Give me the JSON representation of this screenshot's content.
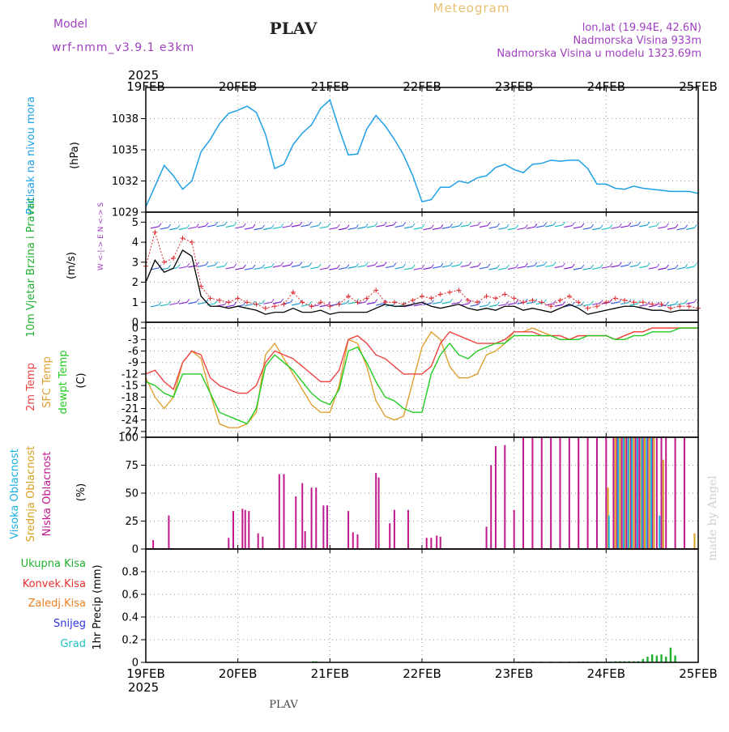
{
  "header": {
    "model_label": "Model",
    "model_name": "wrf-nmm_v3.9.1  e3km",
    "station": "PLAV",
    "product": "Meteogram",
    "lonlat": "lon,lat (19.94E, 42.6N)",
    "elevation": "Nadmorska Visina 933m",
    "model_elevation": "Nadmorska Visina u modelu 1323.69m",
    "footer_station": "PLAV",
    "watermark": "made by Angel"
  },
  "colors": {
    "pressure": "#1ea0e6",
    "wind_speed": "#000000",
    "gust": "#e0282e",
    "temp_2m": "#ee4444",
    "sfc_temp": "#e0a030",
    "dewpoint": "#22cc22",
    "cloud_high": "#1ab0e0",
    "cloud_mid": "#d8a020",
    "cloud_low": "#c0188c",
    "precip_total": "#20b030",
    "precip_conv": "#e83030",
    "precip_frozen": "#f08020",
    "precip_snow": "#3030e0",
    "precip_hail": "#20c0c0",
    "title_purple": "#a040c0",
    "title_gold": "#e8c070",
    "grid": "#9a9a9a"
  },
  "chart_data": [
    {
      "type": "line",
      "panel": "pressure",
      "title": "Pritisak na nivou mora",
      "ylabel": "(hPa)",
      "year": "2025",
      "x_ticks": [
        "19FEB",
        "20FEB",
        "21FEB",
        "22FEB",
        "23FEB",
        "24FEB",
        "25FEB"
      ],
      "x_range_days": [
        0,
        6
      ],
      "ylim": [
        1029,
        1041
      ],
      "y_ticks": [
        "1029",
        "1032",
        "1035",
        "1038"
      ],
      "y_tick_values": [
        1029,
        1032,
        1035,
        1038
      ],
      "x": [
        0,
        0.1,
        0.2,
        0.3,
        0.4,
        0.5,
        0.6,
        0.7,
        0.8,
        0.9,
        1.0,
        1.1,
        1.2,
        1.3,
        1.4,
        1.5,
        1.6,
        1.7,
        1.8,
        1.9,
        2.0,
        2.1,
        2.2,
        2.3,
        2.4,
        2.5,
        2.6,
        2.7,
        2.8,
        2.9,
        3.0,
        3.1,
        3.2,
        3.3,
        3.4,
        3.5,
        3.6,
        3.7,
        3.8,
        3.9,
        4.0,
        4.1,
        4.2,
        4.3,
        4.4,
        4.5,
        4.6,
        4.7,
        4.8,
        4.9,
        5.0,
        5.1,
        5.2,
        5.3,
        5.4,
        5.5,
        5.6,
        5.7,
        5.8,
        5.9,
        6.0
      ],
      "series": [
        {
          "name": "Pritisak",
          "values": [
            1029.5,
            1031.5,
            1033.5,
            1032.5,
            1031.2,
            1032,
            1034.8,
            1036,
            1037.5,
            1038.5,
            1038.8,
            1039.2,
            1038.6,
            1036.5,
            1033.2,
            1033.6,
            1035.5,
            1036.6,
            1037.4,
            1039,
            1039.8,
            1037,
            1034.5,
            1034.6,
            1037,
            1038.3,
            1037.3,
            1036,
            1034.5,
            1032.5,
            1030,
            1030.2,
            1031.4,
            1031.4,
            1032,
            1031.8,
            1032.3,
            1032.5,
            1033.3,
            1033.6,
            1033.1,
            1032.8,
            1033.6,
            1033.7,
            1034,
            1033.9,
            1034,
            1034,
            1033.2,
            1031.7,
            1031.7,
            1031.3,
            1031.2,
            1031.5,
            1031.3,
            1031.2,
            1031.1,
            1031.0,
            1031.0,
            1031.0,
            1030.8
          ]
        }
      ]
    },
    {
      "type": "line",
      "panel": "wind",
      "title": "10m Vjetar Brzina i Pravac",
      "ylabel": "(m/s)",
      "compass_label": "W <-|-> E   N <-> S",
      "ylim": [
        0,
        5.5
      ],
      "y_ticks": [
        "0",
        "1",
        "2",
        "3",
        "4",
        "5"
      ],
      "y_tick_values": [
        0,
        1,
        2,
        3,
        4,
        5
      ],
      "x": [
        0,
        0.1,
        0.2,
        0.3,
        0.4,
        0.5,
        0.6,
        0.7,
        0.8,
        0.9,
        1.0,
        1.1,
        1.2,
        1.3,
        1.4,
        1.5,
        1.6,
        1.7,
        1.8,
        1.9,
        2.0,
        2.1,
        2.2,
        2.3,
        2.4,
        2.5,
        2.6,
        2.7,
        2.8,
        2.9,
        3.0,
        3.1,
        3.2,
        3.3,
        3.4,
        3.5,
        3.6,
        3.7,
        3.8,
        3.9,
        4.0,
        4.1,
        4.2,
        4.3,
        4.4,
        4.5,
        4.6,
        4.7,
        4.8,
        4.9,
        5.0,
        5.1,
        5.2,
        5.3,
        5.4,
        5.5,
        5.6,
        5.7,
        5.8,
        5.9,
        6.0
      ],
      "series": [
        {
          "name": "Brzina",
          "values": [
            2.0,
            3.1,
            2.5,
            2.7,
            3.6,
            3.3,
            1.3,
            0.8,
            0.8,
            0.7,
            0.8,
            0.7,
            0.6,
            0.4,
            0.5,
            0.5,
            0.7,
            0.5,
            0.5,
            0.6,
            0.4,
            0.5,
            0.5,
            0.5,
            0.5,
            0.7,
            0.9,
            0.8,
            0.8,
            0.9,
            1.0,
            0.8,
            0.7,
            0.8,
            0.9,
            0.7,
            0.6,
            0.7,
            0.6,
            0.8,
            0.8,
            0.6,
            0.7,
            0.6,
            0.5,
            0.7,
            0.9,
            0.7,
            0.4,
            0.5,
            0.6,
            0.7,
            0.8,
            0.8,
            0.7,
            0.6,
            0.6,
            0.5,
            0.6,
            0.6,
            0.6
          ]
        },
        {
          "name": "Udar",
          "values": [
            2.8,
            4.5,
            3.0,
            3.2,
            4.2,
            4.0,
            1.8,
            1.2,
            1.1,
            1.0,
            1.2,
            1.0,
            0.9,
            0.7,
            0.8,
            0.9,
            1.5,
            1.0,
            0.8,
            1.0,
            0.8,
            0.9,
            1.3,
            1.0,
            1.2,
            1.6,
            1.0,
            1.0,
            0.9,
            1.1,
            1.3,
            1.2,
            1.4,
            1.5,
            1.6,
            1.1,
            1.0,
            1.3,
            1.2,
            1.4,
            1.2,
            1.0,
            1.1,
            1.0,
            0.8,
            1.1,
            1.3,
            1.0,
            0.7,
            0.8,
            1.0,
            1.2,
            1.1,
            1.0,
            1.0,
            0.9,
            0.9,
            0.7,
            0.8,
            0.8,
            0.7
          ]
        }
      ]
    },
    {
      "type": "line",
      "panel": "temperature",
      "titles": [
        "2m Temp",
        "SFC Temp",
        "dewpt Temp"
      ],
      "ylabel": "(C)",
      "ylim": [
        -28.5,
        1.5
      ],
      "y_ticks": [
        "0",
        "-3",
        "-6",
        "-9",
        "-12",
        "-15",
        "-18",
        "-21",
        "-24",
        "-27"
      ],
      "y_tick_values": [
        0,
        -3,
        -6,
        -9,
        -12,
        -15,
        -18,
        -21,
        -24,
        -27
      ],
      "x": [
        0,
        0.1,
        0.2,
        0.3,
        0.4,
        0.5,
        0.6,
        0.7,
        0.8,
        0.9,
        1.0,
        1.1,
        1.2,
        1.3,
        1.4,
        1.5,
        1.6,
        1.7,
        1.8,
        1.9,
        2.0,
        2.1,
        2.2,
        2.3,
        2.4,
        2.5,
        2.6,
        2.7,
        2.8,
        2.9,
        3.0,
        3.1,
        3.2,
        3.3,
        3.4,
        3.5,
        3.6,
        3.7,
        3.8,
        3.9,
        4.0,
        4.1,
        4.2,
        4.3,
        4.4,
        4.5,
        4.6,
        4.7,
        4.8,
        4.9,
        5.0,
        5.1,
        5.2,
        5.3,
        5.4,
        5.5,
        5.6,
        5.7,
        5.8,
        5.9,
        6.0
      ],
      "series": [
        {
          "name": "2m Temp",
          "values": [
            -12,
            -11,
            -14,
            -16,
            -9,
            -6,
            -7,
            -13,
            -15,
            -16,
            -17,
            -17,
            -15,
            -9,
            -6,
            -7,
            -8,
            -10,
            -12,
            -14,
            -14,
            -11,
            -3,
            -2,
            -4,
            -7,
            -8,
            -10,
            -12,
            -12,
            -12,
            -10,
            -4,
            -1,
            -2,
            -3,
            -4,
            -4,
            -4,
            -3,
            -1,
            -1,
            -1,
            -2,
            -2,
            -2,
            -3,
            -2,
            -2,
            -2,
            -2,
            -3,
            -2,
            -1,
            -1,
            0,
            0,
            0,
            0,
            0,
            0
          ]
        },
        {
          "name": "SFC Temp",
          "values": [
            -13,
            -18,
            -21,
            -18,
            -9,
            -6,
            -8,
            -17,
            -25,
            -26,
            -26,
            -25,
            -22,
            -7,
            -4,
            -8,
            -12,
            -16,
            -20,
            -22,
            -22,
            -15,
            -3,
            -4,
            -10,
            -19,
            -23,
            -24,
            -23,
            -14,
            -5,
            -1,
            -3,
            -10,
            -13,
            -13,
            -12,
            -7,
            -6,
            -4,
            -1,
            -1,
            0,
            -1,
            -2,
            -2,
            -3,
            -2,
            -2,
            -2,
            -2,
            -3,
            -2,
            -1,
            -1,
            0,
            0,
            0,
            0,
            0,
            0
          ]
        },
        {
          "name": "dewpt Temp",
          "values": [
            -14,
            -15,
            -17,
            -18,
            -12,
            -12,
            -12,
            -17,
            -22,
            -23,
            -24,
            -25,
            -21,
            -10,
            -7,
            -9,
            -11,
            -14,
            -17,
            -19,
            -20,
            -16,
            -6,
            -5,
            -9,
            -14,
            -18,
            -19,
            -21,
            -22,
            -22,
            -12,
            -7,
            -4,
            -7,
            -8,
            -6,
            -5,
            -4,
            -4,
            -2,
            -2,
            -2,
            -2,
            -2,
            -3,
            -3,
            -3,
            -2,
            -2,
            -2,
            -3,
            -3,
            -2,
            -2,
            -1,
            -1,
            -1,
            0,
            0,
            0
          ]
        }
      ]
    },
    {
      "type": "bar",
      "panel": "cloud",
      "titles": [
        "Visoka Oblacnost",
        "Srednja Oblacnost",
        "Niska Oblacnost"
      ],
      "ylabel": "(%)",
      "ylim": [
        0,
        100
      ],
      "y_ticks": [
        "0",
        "25",
        "50",
        "75",
        "100"
      ],
      "y_tick_values": [
        0,
        25,
        50,
        75,
        100
      ],
      "series": [
        {
          "name": "Niska Oblacnost",
          "x": [
            0.08,
            0.25,
            0.9,
            0.95,
            1.05,
            1.08,
            1.12,
            1.22,
            1.27,
            1.45,
            1.5,
            1.63,
            1.7,
            1.73,
            1.8,
            1.85,
            1.93,
            1.97,
            2.2,
            2.25,
            2.3,
            2.5,
            2.53,
            2.65,
            2.7,
            2.85,
            3.05,
            3.1,
            3.16,
            3.2,
            3.7,
            3.75,
            3.8,
            3.9,
            4.0,
            4.1,
            4.2,
            4.3,
            4.4,
            4.5,
            4.6,
            4.7,
            4.8,
            4.9,
            5.0,
            5.08,
            5.12,
            5.17,
            5.22,
            5.27,
            5.32,
            5.36,
            5.4,
            5.45,
            5.5,
            5.55,
            5.6,
            5.65,
            5.75,
            5.85
          ],
          "values": [
            8,
            30,
            10,
            34,
            36,
            35,
            34,
            14,
            11,
            67,
            67,
            47,
            59,
            16,
            55,
            55,
            39,
            39,
            34,
            15,
            13,
            68,
            64,
            23,
            35,
            35,
            10,
            10,
            12,
            11,
            20,
            75,
            92,
            93,
            35,
            100,
            100,
            100,
            100,
            100,
            100,
            100,
            100,
            100,
            100,
            100,
            100,
            100,
            100,
            100,
            100,
            100,
            100,
            100,
            100,
            100,
            100,
            100,
            100,
            100
          ]
        },
        {
          "name": "Srednja Oblacnost",
          "x": [
            5.02,
            5.1,
            5.15,
            5.2,
            5.25,
            5.3,
            5.38,
            5.42,
            5.47,
            5.52,
            5.62,
            5.96
          ],
          "values": [
            55,
            100,
            100,
            100,
            100,
            100,
            100,
            100,
            100,
            100,
            80,
            14
          ]
        },
        {
          "name": "Visoka Oblacnost",
          "x": [
            5.03,
            5.13,
            5.19,
            5.24,
            5.28,
            5.34,
            5.39,
            5.44,
            5.49,
            5.58
          ],
          "values": [
            30,
            100,
            100,
            100,
            100,
            100,
            100,
            100,
            100,
            30
          ]
        }
      ]
    },
    {
      "type": "bar",
      "panel": "precip",
      "titles": [
        "Ukupna Kisa",
        "Konvek.Kisa",
        "Zaledj.Kisa",
        "Snijeg",
        "Grad"
      ],
      "ylabel": "1hr Precip (mm)",
      "ylim": [
        0,
        1.0
      ],
      "y_ticks": [
        "0",
        "0.2",
        "0.4",
        "0.6",
        "0.8"
      ],
      "y_tick_values": [
        0,
        0.2,
        0.4,
        0.6,
        0.8
      ],
      "series": [
        {
          "name": "Ukupna Kisa",
          "x": [
            1.82,
            1.85,
            4.05,
            4.2,
            4.3,
            4.4,
            4.5,
            4.6,
            4.7,
            4.75,
            4.8,
            4.9,
            5.05,
            5.1,
            5.15,
            5.2,
            5.25,
            5.3,
            5.35,
            5.4,
            5.45,
            5.5,
            5.55,
            5.6,
            5.65,
            5.7,
            5.75
          ],
          "values": [
            0.01,
            0.01,
            0.005,
            0.005,
            0.005,
            0.005,
            0.005,
            0.005,
            0.005,
            0.005,
            0.005,
            0.005,
            0.005,
            0.01,
            0.01,
            0.01,
            0.01,
            0.01,
            0.01,
            0.03,
            0.05,
            0.07,
            0.06,
            0.07,
            0.05,
            0.13,
            0.06
          ]
        }
      ]
    }
  ]
}
